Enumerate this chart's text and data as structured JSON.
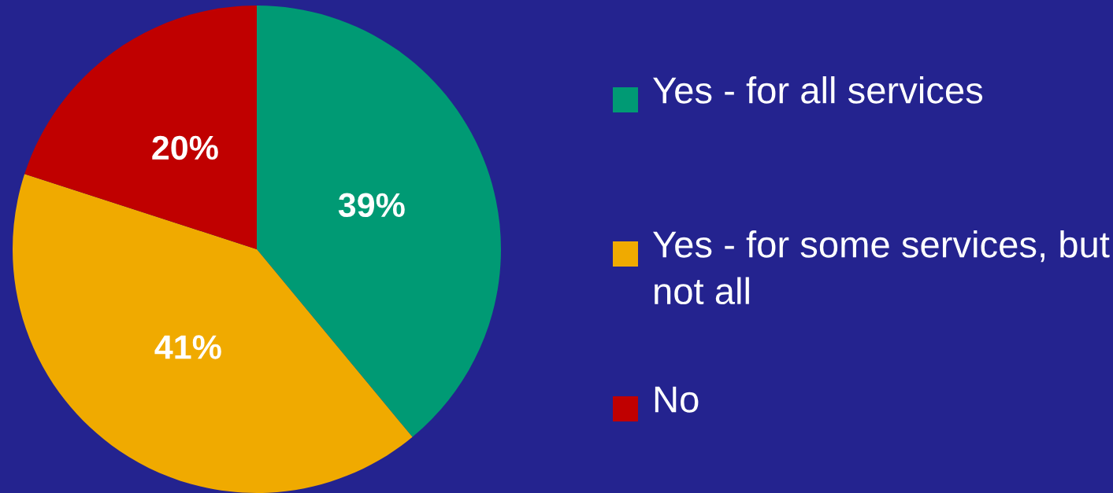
{
  "chart_data": {
    "type": "pie",
    "categories": [
      "Yes - for all services",
      "Yes - for some services, but not all",
      "No"
    ],
    "values": [
      39,
      41,
      20
    ],
    "value_labels": [
      "39%",
      "41%",
      "20%"
    ],
    "colors": [
      "#009a74",
      "#f0aa00",
      "#c00000"
    ],
    "legend": "right"
  }
}
